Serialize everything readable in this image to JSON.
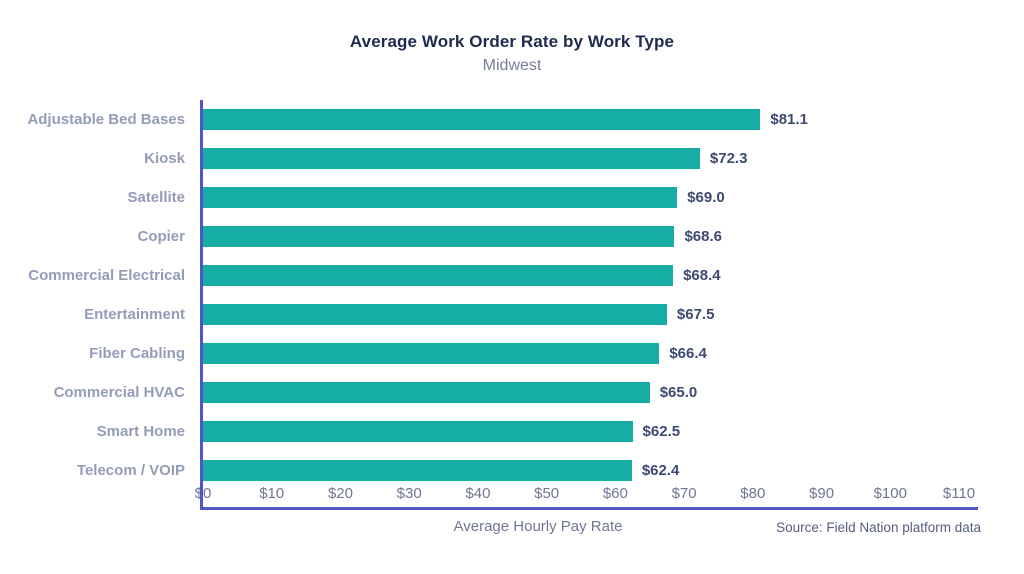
{
  "header": {
    "title": "Average Work Order Rate by Work Type",
    "subtitle": "Midwest"
  },
  "chart_data": {
    "type": "bar",
    "orientation": "horizontal",
    "title": "Average Work Order Rate by Work Type",
    "subtitle": "Midwest",
    "categories": [
      "Adjustable Bed Bases",
      "Kiosk",
      "Satellite",
      "Copier",
      "Commercial Electrical",
      "Entertainment",
      "Fiber Cabling",
      "Commercial HVAC",
      "Smart Home",
      "Telecom / VOIP"
    ],
    "values": [
      81.1,
      72.3,
      69.0,
      68.6,
      68.4,
      67.5,
      66.4,
      65.0,
      62.5,
      62.4
    ],
    "value_labels": [
      "$81.1",
      "$72.3",
      "$69.0",
      "$68.6",
      "$68.4",
      "$67.5",
      "$66.4",
      "$65.0",
      "$62.5",
      "$62.4"
    ],
    "xlabel": "Average Hourly Pay Rate",
    "ylabel": "",
    "xlim": [
      0,
      110
    ],
    "xticks": [
      0,
      10,
      20,
      30,
      40,
      50,
      60,
      70,
      80,
      90,
      100,
      110
    ],
    "xtick_labels": [
      "$0",
      "$10",
      "$20",
      "$30",
      "$40",
      "$50",
      "$60",
      "$70",
      "$80",
      "$90",
      "$100",
      "$110"
    ],
    "grid": false,
    "legend": null,
    "colors": {
      "bar": "#17ADA7",
      "axis": "#5056C7",
      "title_text": "#1F2B4E",
      "subtitle_text": "#777E9B",
      "category_text": "#949CB8",
      "value_text": "#3E4A72",
      "tick_text": "#6F7692"
    }
  },
  "footer": {
    "source": "Source: Field Nation platform data"
  }
}
